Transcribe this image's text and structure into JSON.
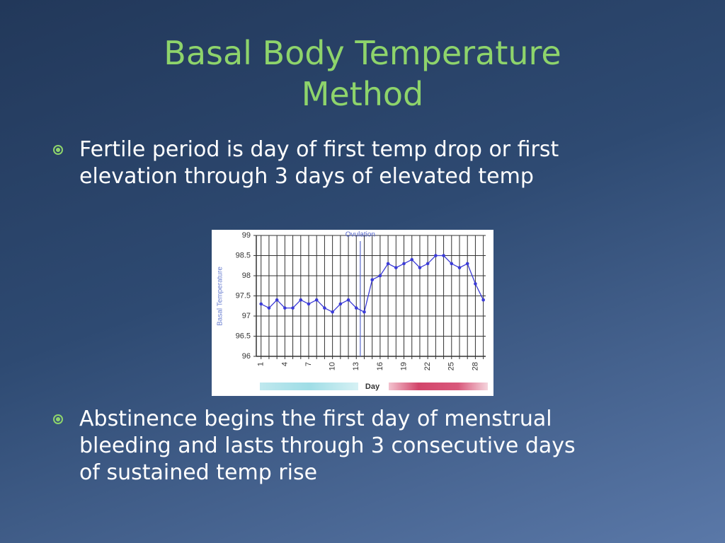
{
  "slide": {
    "title_lines": [
      "Basal Body Temperature",
      "Method"
    ],
    "bullets": [
      [
        "Fertile period is day of first temp drop or first",
        "elevation through 3 days of elevated temp"
      ],
      [
        "Abstinence begins the first day of menstrual",
        "bleeding and lasts through 3 consecutive days",
        "of sustained temp rise"
      ]
    ]
  },
  "chart_data": {
    "type": "line",
    "x_label": "Day",
    "y_label": "Basal Temperature",
    "annotation": {
      "text": "Ovulation",
      "x": 13.5
    },
    "x": [
      1,
      2,
      3,
      4,
      5,
      6,
      7,
      8,
      9,
      10,
      11,
      12,
      13,
      14,
      15,
      16,
      17,
      18,
      19,
      20,
      21,
      22,
      23,
      24,
      25,
      26,
      27,
      28,
      29
    ],
    "series": [
      {
        "color": "#3b3bd6",
        "values": [
          97.3,
          97.2,
          97.4,
          97.2,
          97.2,
          97.4,
          97.3,
          97.4,
          97.2,
          97.1,
          97.3,
          97.4,
          97.2,
          97.1,
          97.9,
          98.0,
          98.3,
          98.2,
          98.3,
          98.4,
          98.2,
          98.3,
          98.5,
          98.5,
          98.3,
          98.2,
          98.3,
          97.8,
          97.4
        ]
      }
    ],
    "xlim": [
      0.4,
      29.3
    ],
    "xticks": [
      1,
      4,
      7,
      10,
      13,
      16,
      19,
      22,
      25,
      28
    ],
    "ylim": [
      96,
      99
    ],
    "yticks": [
      96,
      96.5,
      97,
      97.5,
      98,
      98.5,
      99
    ],
    "grid": true
  }
}
